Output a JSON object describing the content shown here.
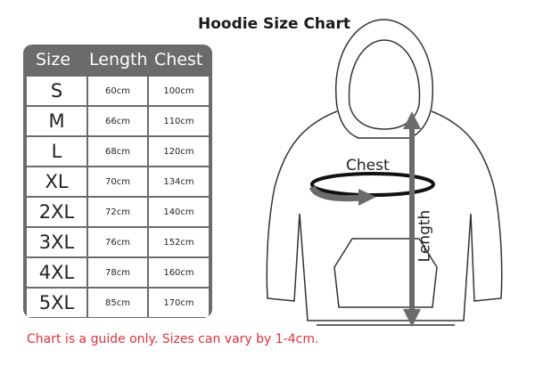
{
  "title": "Hoodie Size Chart",
  "table": {
    "headers": [
      "Size",
      "Length",
      "Chest"
    ],
    "rows": [
      [
        "S",
        "60cm",
        "100cm"
      ],
      [
        "M",
        "66cm",
        "110cm"
      ],
      [
        "L",
        "68cm",
        "120cm"
      ],
      [
        "XL",
        "70cm",
        "134cm"
      ],
      [
        "2XL",
        "72cm",
        "140cm"
      ],
      [
        "3XL",
        "76cm",
        "152cm"
      ],
      [
        "4XL",
        "78cm",
        "160cm"
      ],
      [
        "5XL",
        "85cm",
        "170cm"
      ]
    ]
  },
  "diagram": {
    "chest_label": "Chest",
    "length_label": "Length",
    "arrow_color": "#6b6b6d"
  },
  "note": "Chart is a guide only. Sizes can vary by 1-4cm.",
  "colors": {
    "table_bg": "#6b6b6d",
    "note": "#e0303a"
  }
}
